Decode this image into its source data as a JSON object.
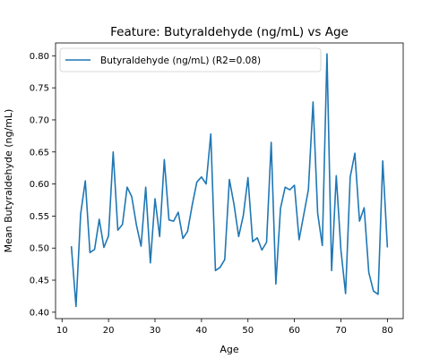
{
  "chart_data": {
    "type": "line",
    "title": "Feature: Butyraldehyde (ng/mL) vs Age",
    "xlabel": "Age",
    "ylabel": "Mean Butyraldehyde (ng/mL)",
    "xlim": [
      8.6,
      83.4
    ],
    "ylim": [
      0.39,
      0.82
    ],
    "xticks": [
      10,
      20,
      30,
      40,
      50,
      60,
      70,
      80
    ],
    "yticks": [
      0.4,
      0.45,
      0.5,
      0.55,
      0.6,
      0.65,
      0.7,
      0.75,
      0.8
    ],
    "grid": false,
    "legend_position": "top-left",
    "color": "#1f77b4",
    "series": [
      {
        "name": "Butyraldehyde (ng/mL) (R2=0.08)",
        "x": [
          12,
          13,
          14,
          15,
          16,
          17,
          18,
          19,
          20,
          21,
          22,
          23,
          24,
          25,
          26,
          27,
          28,
          29,
          30,
          31,
          32,
          33,
          34,
          35,
          36,
          37,
          38,
          39,
          40,
          41,
          42,
          43,
          44,
          45,
          46,
          47,
          48,
          49,
          50,
          51,
          52,
          53,
          54,
          55,
          56,
          57,
          58,
          59,
          60,
          61,
          62,
          63,
          64,
          65,
          66,
          67,
          68,
          69,
          70,
          71,
          72,
          73,
          74,
          75,
          76,
          77,
          78,
          79,
          80
        ],
        "y": [
          0.503,
          0.409,
          0.553,
          0.605,
          0.493,
          0.498,
          0.545,
          0.501,
          0.519,
          0.65,
          0.528,
          0.537,
          0.595,
          0.58,
          0.536,
          0.503,
          0.595,
          0.477,
          0.577,
          0.518,
          0.638,
          0.544,
          0.542,
          0.556,
          0.515,
          0.526,
          0.567,
          0.603,
          0.611,
          0.6,
          0.678,
          0.465,
          0.47,
          0.482,
          0.607,
          0.568,
          0.518,
          0.551,
          0.61,
          0.51,
          0.516,
          0.497,
          0.509,
          0.665,
          0.444,
          0.562,
          0.595,
          0.591,
          0.598,
          0.513,
          0.552,
          0.591,
          0.728,
          0.554,
          0.504,
          0.803,
          0.465,
          0.613,
          0.497,
          0.429,
          0.611,
          0.648,
          0.542,
          0.563,
          0.462,
          0.433,
          0.428,
          0.636,
          0.501
        ]
      }
    ]
  }
}
